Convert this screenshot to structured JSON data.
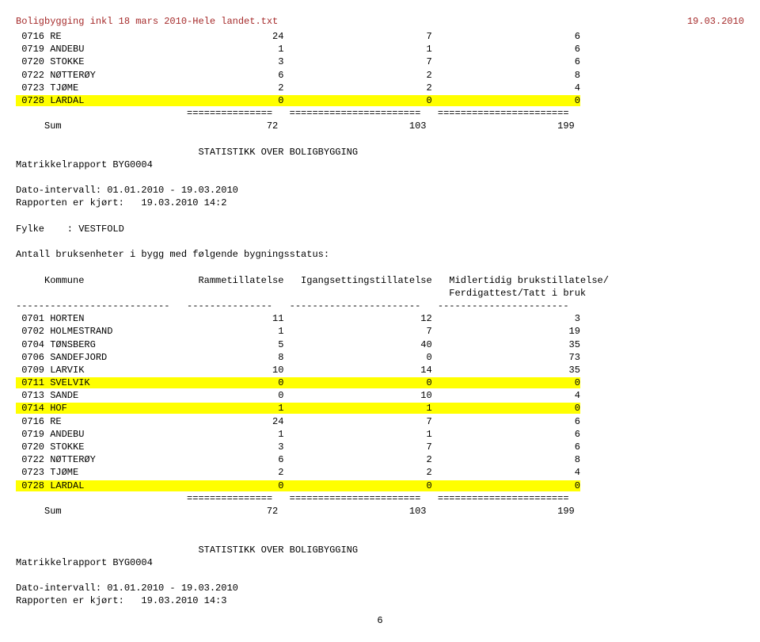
{
  "header": {
    "left": "Boligbygging inkl 18 mars  2010-Hele landet.txt",
    "right": "19.03.2010"
  },
  "page_number": "6",
  "section_title": "STATISTIKK OVER BOLIGBYGGING",
  "report_line": "Matrikkelrapport BYG0004",
  "date_interval": "Dato-intervall: 01.01.2010 - 19.03.2010",
  "report_run2": "Rapporten er kjørt:   19.03.2010 14:2",
  "report_run3": "Rapporten er kjørt:   19.03.2010 14:3",
  "fylke": "Fylke    : VESTFOLD",
  "count_line": "Antall bruksenheter i bygg med følgende bygningsstatus:",
  "table": {
    "cols": [
      "     Kommune                    Rammetillatelse   Igangsettingstillatelse   Midlertidig brukstillatelse/",
      "                                                                            Ferdigattest/Tatt i bruk",
      "---------------------------   ---------------   -----------------------   -----------------------"
    ],
    "top_rows": [
      {
        "hl": false,
        "text": " 0716 RE                                     24                         7                         6"
      },
      {
        "hl": false,
        "text": " 0719 ANDEBU                                  1                         1                         6"
      },
      {
        "hl": false,
        "text": " 0720 STOKKE                                  3                         7                         6"
      },
      {
        "hl": false,
        "text": " 0722 NØTTERØY                                6                         2                         8"
      },
      {
        "hl": false,
        "text": " 0723 TJØME                                   2                         2                         4"
      },
      {
        "hl": true,
        "text": " 0728 LARDAL                                  0                         0                         0"
      }
    ],
    "sep": "                              ===============   =======================   =======================",
    "sum": "     Sum                                    72                       103                       199",
    "rows": [
      {
        "hl": false,
        "text": " 0701 HORTEN                                 11                        12                         3"
      },
      {
        "hl": false,
        "text": " 0702 HOLMESTRAND                             1                         7                        19"
      },
      {
        "hl": false,
        "text": " 0704 TØNSBERG                                5                        40                        35"
      },
      {
        "hl": false,
        "text": " 0706 SANDEFJORD                              8                         0                        73"
      },
      {
        "hl": false,
        "text": " 0709 LARVIK                                 10                        14                        35"
      },
      {
        "hl": true,
        "text": " 0711 SVELVIK                                 0                         0                         0"
      },
      {
        "hl": false,
        "text": " 0713 SANDE                                   0                        10                         4"
      },
      {
        "hl": true,
        "text": " 0714 HOF                                     1                         1                         0"
      },
      {
        "hl": false,
        "text": " 0716 RE                                     24                         7                         6"
      },
      {
        "hl": false,
        "text": " 0719 ANDEBU                                  1                         1                         6"
      },
      {
        "hl": false,
        "text": " 0720 STOKKE                                  3                         7                         6"
      },
      {
        "hl": false,
        "text": " 0722 NØTTERØY                                6                         2                         8"
      },
      {
        "hl": false,
        "text": " 0723 TJØME                                   2                         2                         4"
      },
      {
        "hl": true,
        "text": " 0728 LARDAL                                  0                         0                         0"
      }
    ]
  }
}
